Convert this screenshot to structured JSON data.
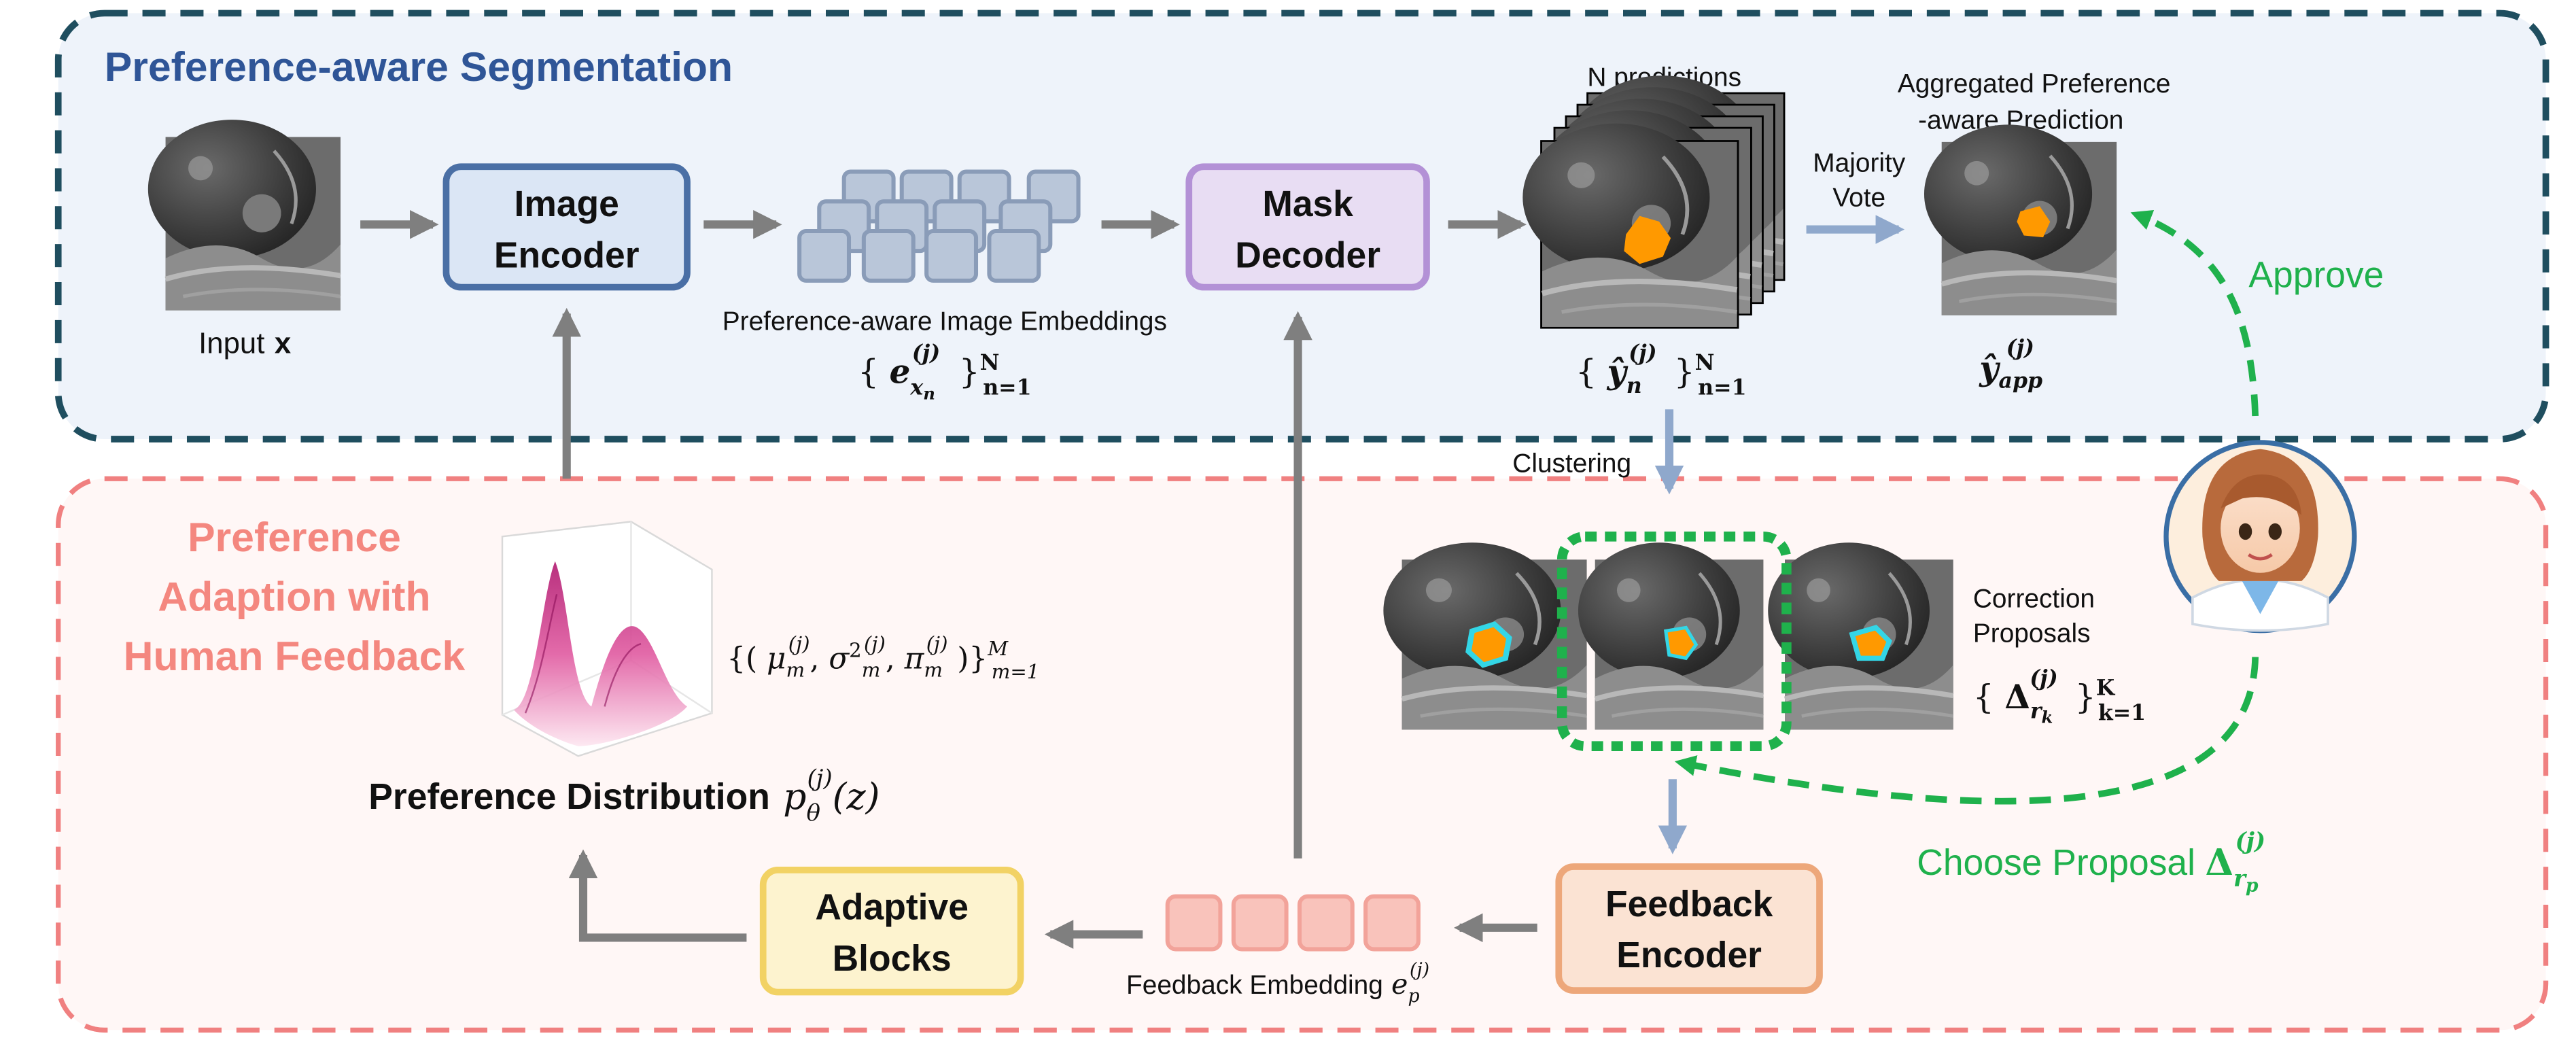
{
  "panels": {
    "segmentation_title": "Preference-aware Segmentation",
    "adaption_title_lines": [
      "Preference",
      "Adaption with",
      "Human Feedback"
    ]
  },
  "blocks": {
    "image_encoder": [
      "Image",
      "Encoder"
    ],
    "mask_decoder": [
      "Mask",
      "Decoder"
    ],
    "feedback_encoder": [
      "Feedback",
      "Encoder"
    ],
    "adaptive_blocks": [
      "Adaptive",
      "Blocks"
    ]
  },
  "labels": {
    "input": "Input",
    "input_var": "x",
    "image_embeddings": "Preference-aware  Image Embeddings",
    "n_predictions": "N  predictions",
    "aggregated_lines": [
      "Aggregated Preference",
      "-aware Prediction"
    ],
    "majority_vote_lines": [
      "Majority",
      "Vote"
    ],
    "approve": "Approve",
    "clustering": "Clustering",
    "correction_lines": [
      "Correction",
      "Proposals"
    ],
    "choose_proposal": "Choose Proposal",
    "feedback_embedding": "Feedback Embedding",
    "preference_distribution": "Preference Distribution"
  },
  "math": {
    "embeddings_set": "{ e_{x_n}^{(j)} }_{n=1}^{N}",
    "predictions_set": "{ ŷ_n^{(j)} }_{n=1}^{N}",
    "y_app": "ŷ_{app}^{(j)}",
    "gmm_params": "{( μ_m^{(j)}, σ²_m^{(j)}, π_m^{(j)} )}_{m=1}^{M}",
    "proposals_set": "{ Δ_{r_k}^{(j)} }_{k=1}^{K}",
    "chosen_proposal": "Δ_{r_p}^{(j)}",
    "feedback_embedding_sym": "e_p^{(j)}",
    "pref_dist_sym": "p_θ^{(j)}(z)"
  },
  "icons": [
    "ct-scan-image",
    "doctor-avatar-icon",
    "density-surface-plot"
  ],
  "colors": {
    "seg_border": "#1f4e5f",
    "seg_fill": "#eef3fa",
    "seg_title": "#2f5597",
    "adapt_border": "#f08080",
    "adapt_fill": "#fff7f6",
    "adapt_title": "#f4877f",
    "feedback_green": "#1fb14c",
    "arrow_gray": "#7f7f7f",
    "arrow_blue": "#8fa8cc",
    "mask_orange": "#ff9900",
    "mask_cyan": "#33d6e6",
    "image_encoder_fill": "#dbe6f5",
    "image_encoder_border": "#4a6fa5",
    "mask_decoder_fill": "#e8ddf3",
    "mask_decoder_border": "#b391d6",
    "feedback_encoder_fill": "#fbe3d3",
    "feedback_encoder_border": "#eda77a",
    "adaptive_fill": "#fdf3cf",
    "adaptive_border": "#f2d264"
  }
}
